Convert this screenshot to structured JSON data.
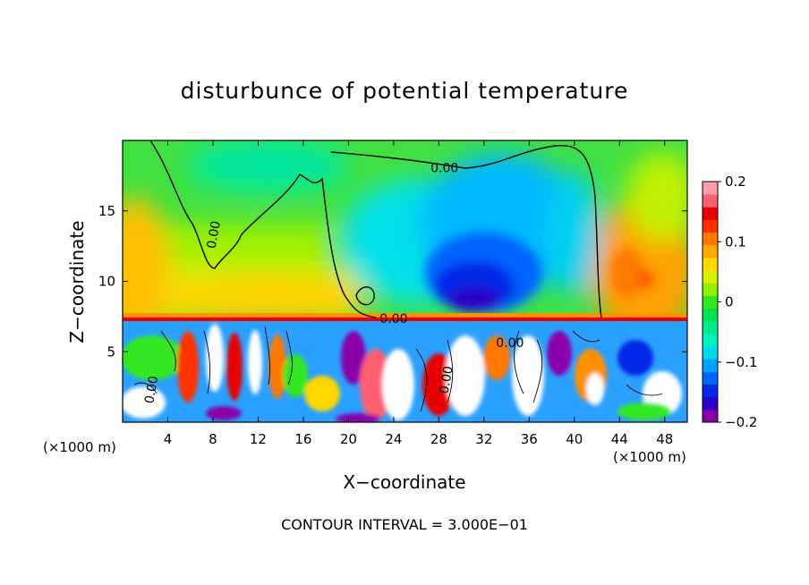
{
  "chart_data": {
    "type": "heatmap",
    "title": "disturbunce of potential temperature",
    "xlabel": "X−coordinate",
    "ylabel": "Z−coordinate",
    "x_unit_left": "(×1000 m)",
    "x_unit_right": "(×1000 m)",
    "footer": "CONTOUR INTERVAL = 3.000E−01",
    "xlim": [
      0,
      50
    ],
    "ylim": [
      0,
      20
    ],
    "x_ticks": [
      4,
      8,
      12,
      16,
      20,
      24,
      28,
      32,
      36,
      40,
      44,
      48
    ],
    "y_ticks": [
      5,
      10,
      15
    ],
    "colorbar": {
      "range": [
        -0.2,
        0.2
      ],
      "tick_labels": [
        "0.2",
        "0.1",
        "0",
        "−0.1",
        "−0.2"
      ],
      "tick_values": [
        0.2,
        0.1,
        0,
        -0.1,
        -0.2
      ],
      "colors": [
        "#8a00a8",
        "#2b00c8",
        "#0028e6",
        "#0064ff",
        "#00a0ff",
        "#00d8f0",
        "#00f0c0",
        "#00e890",
        "#00e050",
        "#30e820",
        "#90f000",
        "#d8f000",
        "#ffd800",
        "#ffa800",
        "#ff7800",
        "#ff3000",
        "#e80000",
        "#ff6070",
        "#ff9ca8"
      ]
    },
    "contour_labels": [
      {
        "text": "0.00",
        "x": 28.5,
        "y": 18.0
      },
      {
        "text": "0.00",
        "x": 8.1,
        "y": 13.3
      },
      {
        "text": "0.00",
        "x": 24.0,
        "y": 7.3
      },
      {
        "text": "0.00",
        "x": 34.3,
        "y": 5.6
      },
      {
        "text": "0.00",
        "x": 2.6,
        "y": 2.3
      },
      {
        "text": "0.00",
        "x": 28.7,
        "y": 3.0
      }
    ],
    "features": [
      {
        "kind": "cold-anomaly",
        "center": [
          30.5,
          9.8
        ],
        "value": -0.2
      },
      {
        "kind": "cold-anomaly",
        "center": [
          21.5,
          14.0
        ],
        "value": -0.05
      },
      {
        "kind": "warm-anomaly",
        "center": [
          46.0,
          10.5
        ],
        "value": 0.12
      },
      {
        "kind": "warm-layer",
        "z": 7.6,
        "value": 0.1
      },
      {
        "kind": "turbulent-layer",
        "z_range": [
          0,
          7.2
        ]
      }
    ]
  }
}
